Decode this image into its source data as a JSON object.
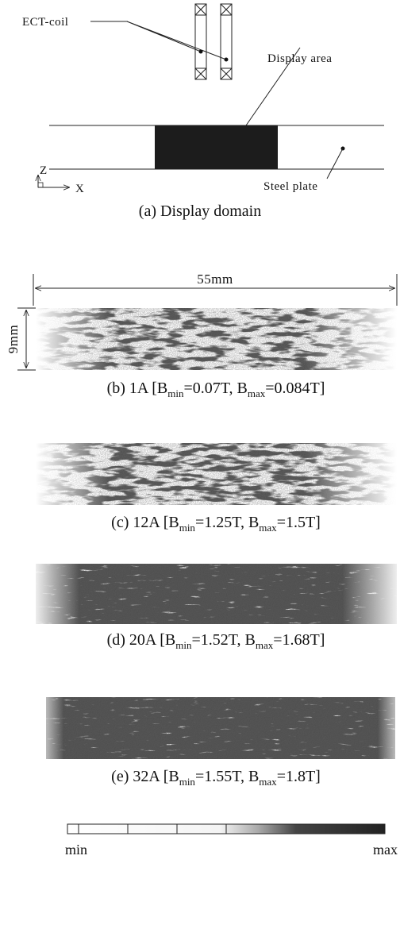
{
  "figure": {
    "labels": {
      "ect_coil": "ECT-coil",
      "display_area": "Display area",
      "z_axis": "Z",
      "x_axis": "X",
      "steel_plate": "Steel plate"
    },
    "caption_a": "(a) Display domain",
    "width_dimension": "55mm",
    "height_dimension": "9mm",
    "panels": [
      {
        "caption": [
          "(b) 1A [B",
          "min",
          "=0.07T, B",
          "max",
          "=0.084T]"
        ]
      },
      {
        "caption": [
          "(c) 12A [B",
          "min",
          "=1.25T, B",
          "max",
          "=1.5T]"
        ]
      },
      {
        "caption": [
          "(d) 20A [B",
          "min",
          "=1.52T, B",
          "max",
          "=1.68T]"
        ]
      },
      {
        "caption": [
          "(e) 32A [B",
          "min",
          "=1.55T, B",
          "max",
          "=1.8T]"
        ]
      }
    ],
    "colorbar": {
      "min": "min",
      "max": "max"
    }
  }
}
